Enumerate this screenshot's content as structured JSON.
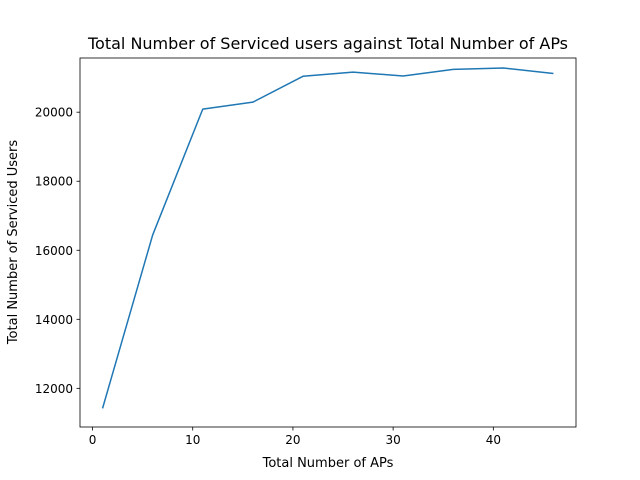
{
  "chart_data": {
    "type": "line",
    "title": "Total Number of Serviced users against Total Number of APs",
    "xlabel": "Total Number of APs",
    "ylabel": "Total Number of Serviced Users",
    "xlim": [
      -1.25,
      48.25
    ],
    "ylim": [
      10880,
      21570
    ],
    "xticks": [
      0,
      10,
      20,
      30,
      40
    ],
    "yticks": [
      12000,
      14000,
      16000,
      18000,
      20000
    ],
    "grid": false,
    "legend": "none",
    "series": [
      {
        "color": "#1f77b4",
        "x": [
          1,
          6,
          11,
          16,
          21,
          26,
          31,
          36,
          41,
          46
        ],
        "y": [
          11420,
          16440,
          20090,
          20290,
          21040,
          21160,
          21050,
          21240,
          21280,
          21120
        ]
      }
    ]
  }
}
